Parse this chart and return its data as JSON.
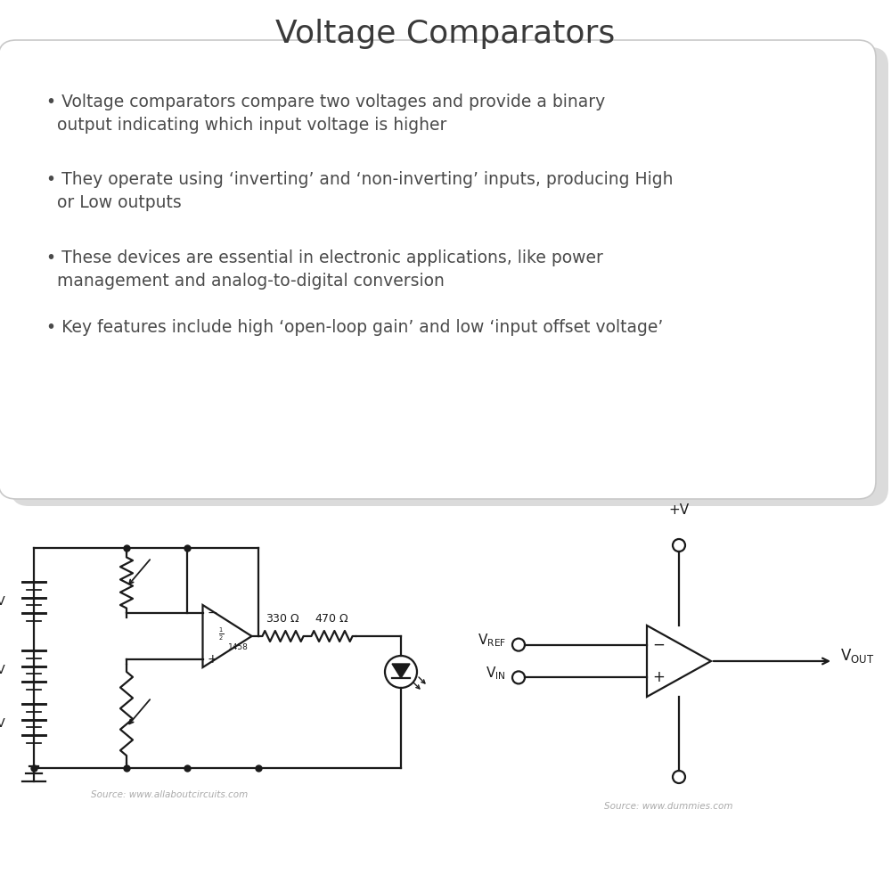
{
  "title": "Voltage Comparators",
  "title_fontsize": 26,
  "title_color": "#3a3a3a",
  "bg_color": "#ffffff",
  "bullet_points": [
    "Voltage comparators compare two voltages and provide a binary\n  output indicating which input voltage is higher",
    "They operate using ‘inverting’ and ‘non-inverting’ inputs, producing High\n  or Low outputs",
    "These devices are essential in electronic applications, like power\n  management and analog-to-digital conversion",
    "Key features include high ‘open-loop gain’ and low ‘input offset voltage’"
  ],
  "bullet_fontsize": 13.5,
  "bullet_color": "#4a4a4a",
  "box_bg": "#ffffff",
  "box_edge": "#c8c8c8",
  "source1": "Source: www.allaboutcircuits.com",
  "source2": "Source: www.dummies.com",
  "circuit_color": "#1a1a1a",
  "lw": 1.6
}
